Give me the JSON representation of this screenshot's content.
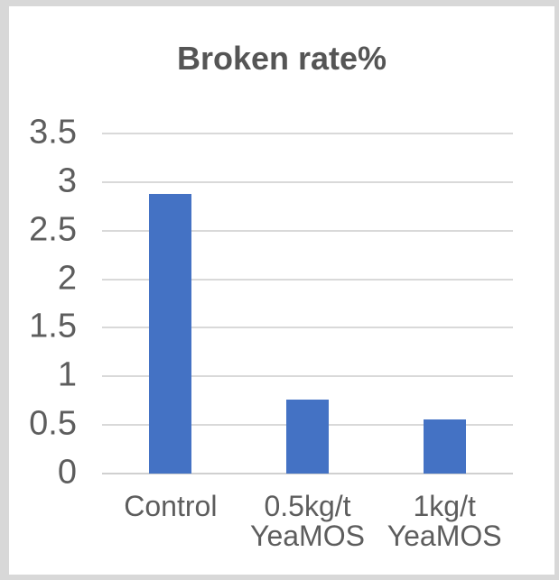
{
  "frame": {
    "border_color": "#d8d8d8",
    "background_color": "#ffffff"
  },
  "chart_data": {
    "type": "bar",
    "title": "Broken rate%",
    "categories": [
      "Control",
      "0.5kg/t\nYeaMOS",
      "1kg/t\nYeaMOS"
    ],
    "values": [
      2.88,
      0.76,
      0.56
    ],
    "xlabel": "",
    "ylabel": "",
    "ylim": [
      0,
      3.5
    ],
    "yticks": [
      0,
      0.5,
      1,
      1.5,
      2,
      2.5,
      3,
      3.5
    ],
    "ytick_labels": [
      "0",
      "0.5",
      "1",
      "1.5",
      "2",
      "2.5",
      "3",
      "3.5"
    ],
    "grid": true,
    "legend": false,
    "bar_color": "#4472C4",
    "gridline_color": "#d9d9d9",
    "axis_line_color": "#d0d0d0",
    "title_color": "#555555",
    "tick_label_color": "#5d5d5d"
  }
}
